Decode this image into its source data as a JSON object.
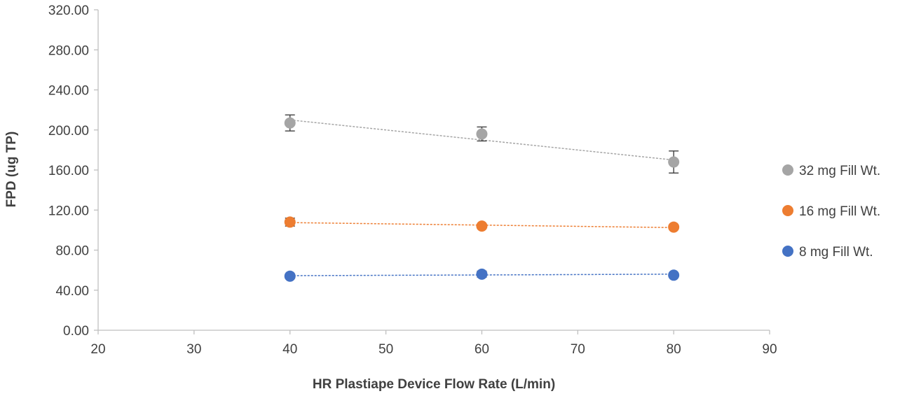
{
  "chart_data": {
    "type": "scatter",
    "title": "",
    "xlabel": "HR Plastiape Device Flow Rate (L/min)",
    "ylabel": "FPD (ug TP)",
    "xlim": [
      20,
      90
    ],
    "ylim": [
      0,
      320
    ],
    "x_ticks": [
      "20",
      "30",
      "40",
      "50",
      "60",
      "70",
      "80",
      "90"
    ],
    "y_ticks": [
      "0.00",
      "40.00",
      "80.00",
      "120.00",
      "160.00",
      "200.00",
      "240.00",
      "280.00",
      "320.00"
    ],
    "x_tick_values": [
      20,
      30,
      40,
      50,
      60,
      70,
      80,
      90
    ],
    "y_tick_values": [
      0,
      40,
      80,
      120,
      160,
      200,
      240,
      280,
      320
    ],
    "grid": false,
    "legend_position": "right",
    "trendlines": "linear, dashed",
    "series": [
      {
        "name": "32 mg Fill Wt.",
        "color": "#a5a5a5",
        "x": [
          40,
          60,
          80
        ],
        "y": [
          207,
          196,
          168
        ],
        "error": [
          8,
          7,
          11
        ],
        "trend": [
          210,
          190,
          170
        ]
      },
      {
        "name": "16 mg Fill Wt.",
        "color": "#ed7d31",
        "x": [
          40,
          60,
          80
        ],
        "y": [
          108,
          104,
          103
        ],
        "error": [
          4,
          2,
          2
        ],
        "trend": [
          107.5,
          105,
          102.5
        ]
      },
      {
        "name": "8 mg Fill Wt.",
        "color": "#4472c4",
        "x": [
          40,
          60,
          80
        ],
        "y": [
          54,
          56,
          55
        ],
        "error": [
          1,
          3,
          1
        ],
        "trend": [
          54.5,
          55.2,
          56
        ]
      }
    ]
  }
}
